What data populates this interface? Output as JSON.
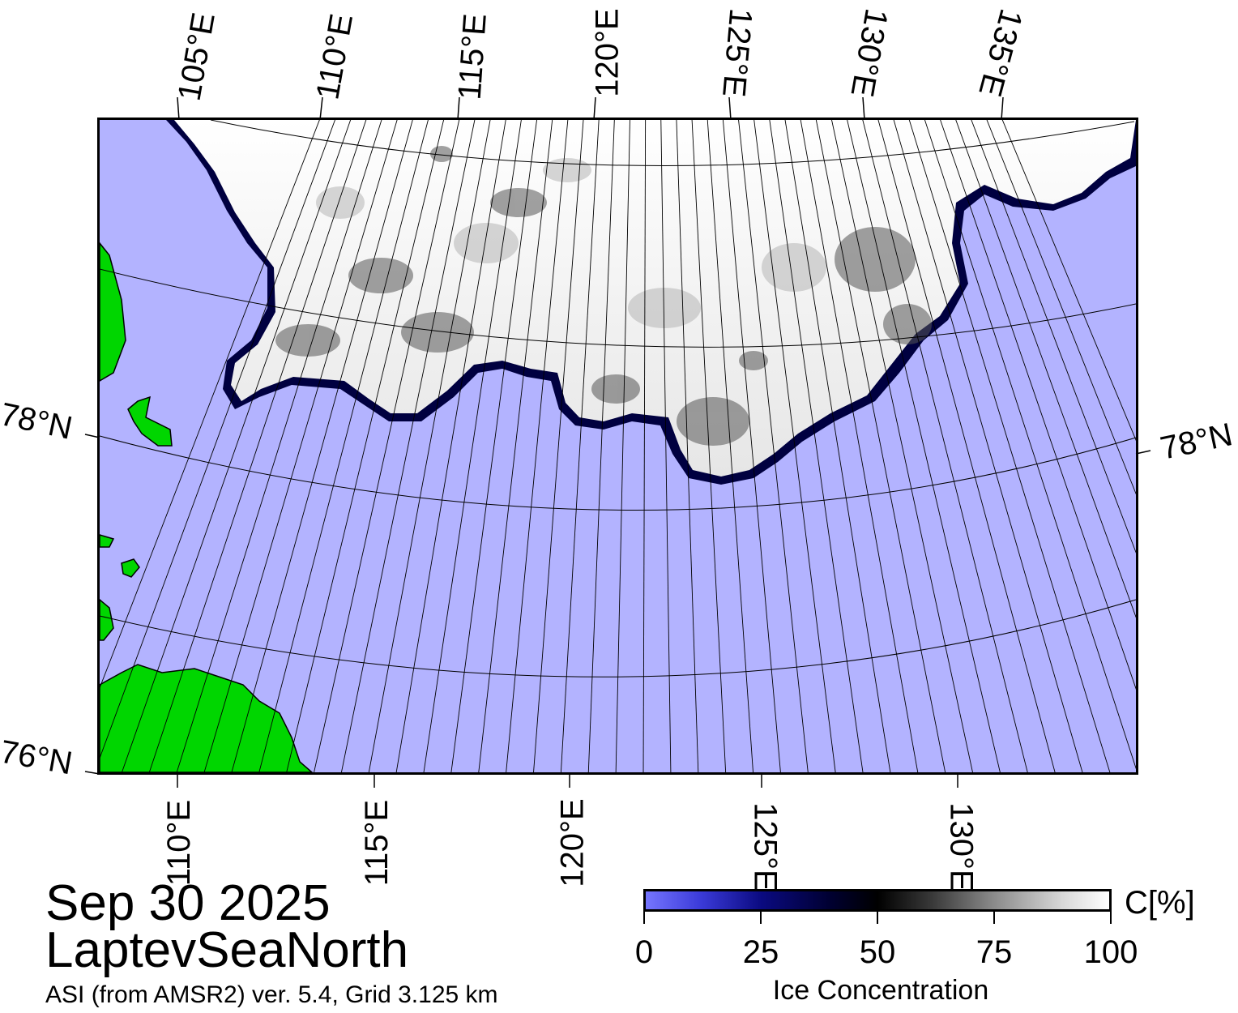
{
  "title": {
    "date": "Sep 30 2025",
    "region": "LaptevSeaNorth",
    "source": "ASI (from AMSR2) ver. 5.4,  Grid 3.125 km"
  },
  "map": {
    "top_lon_labels": [
      "105°E",
      "110°E",
      "115°E",
      "120°E",
      "125°E",
      "130°E",
      "135°E"
    ],
    "bottom_lon_labels": [
      "110°E",
      "115°E",
      "120°E",
      "125°E",
      "130°E"
    ],
    "lat_labels": {
      "left_78": "78°N",
      "right_78": "78°N",
      "left_76": "76°N"
    },
    "colors": {
      "open_water": "#b3b3ff",
      "ice": "#ffffff",
      "land": "#00d600",
      "coast": "#808080",
      "ice_edge": "#00004d"
    }
  },
  "colorbar": {
    "title": "Ice Concentration",
    "unit": "C[%]",
    "ticks": [
      "0",
      "25",
      "50",
      "75",
      "100"
    ],
    "range": [
      0,
      100
    ]
  }
}
